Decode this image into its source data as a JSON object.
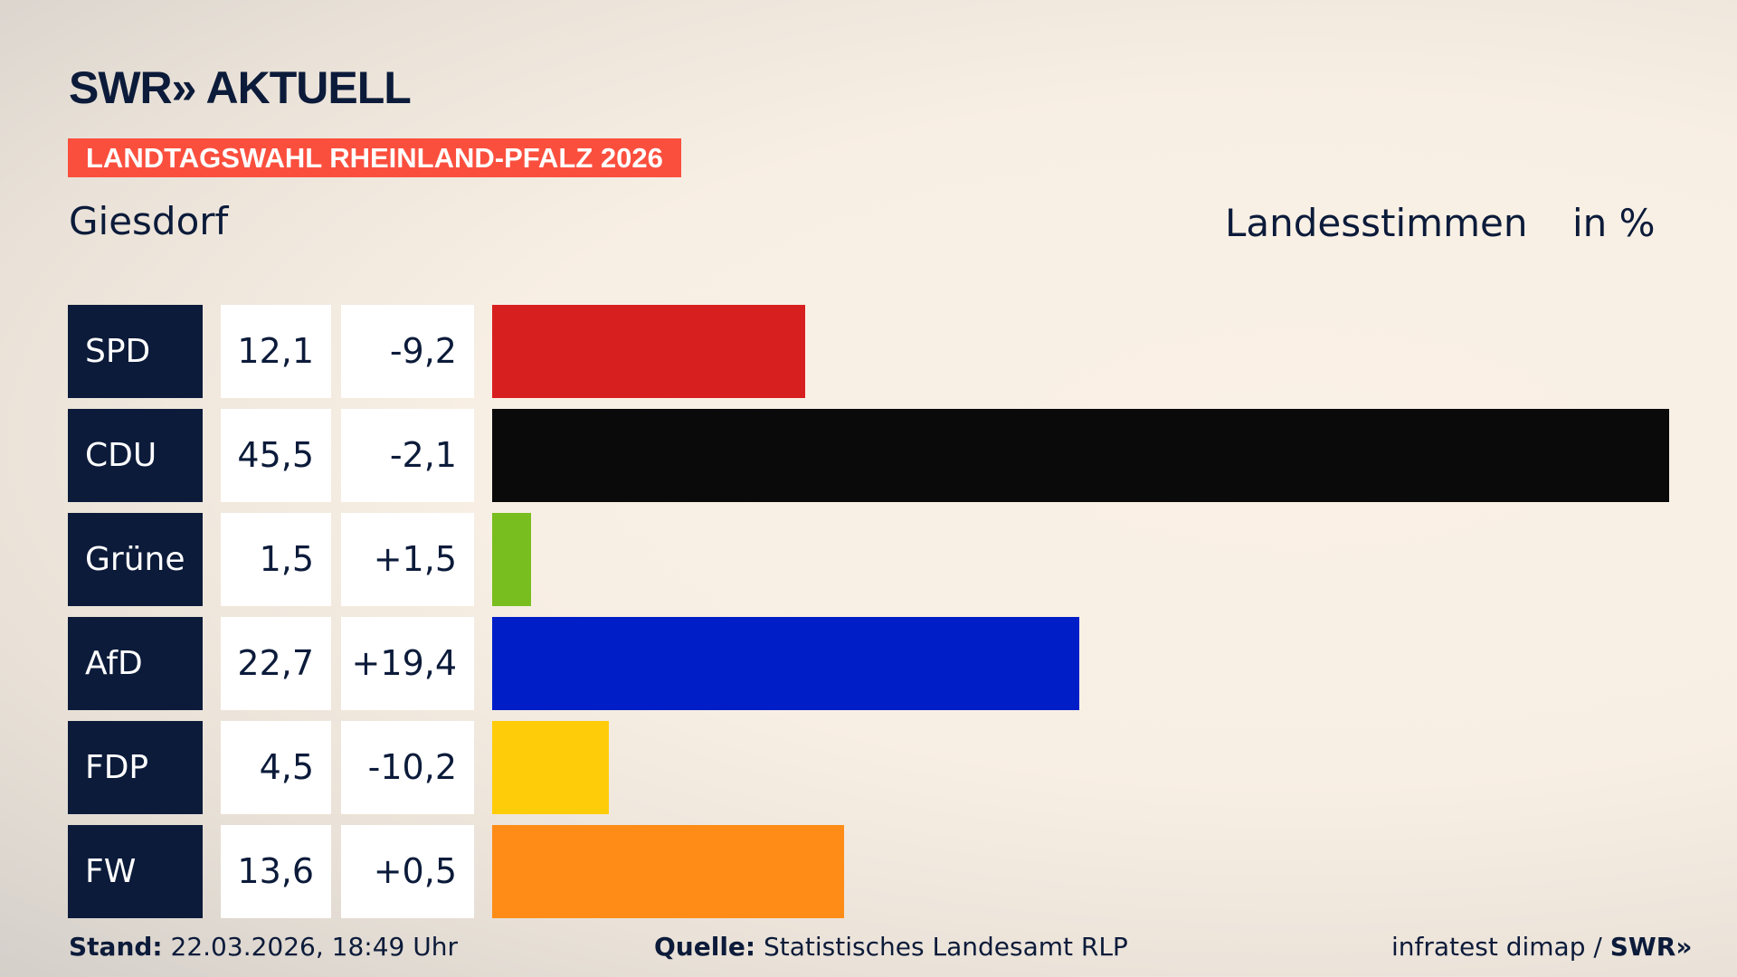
{
  "logo": "SWR» AKTUELL",
  "banner": "LANDTAGSWAHL RHEINLAND-PFALZ 2026",
  "location": "Giesdorf",
  "header": {
    "type": "Landesstimmen",
    "unit": "in %"
  },
  "chart_data": {
    "type": "bar",
    "orientation": "horizontal",
    "categories": [
      "SPD",
      "CDU",
      "Grüne",
      "AfD",
      "FDP",
      "FW"
    ],
    "values": [
      12.1,
      45.5,
      1.5,
      22.7,
      4.5,
      13.6
    ],
    "value_labels": [
      "12,1",
      "45,5",
      "1,5",
      "22,7",
      "4,5",
      "13,6"
    ],
    "diff_labels": [
      "-9,2",
      "-2,1",
      "+1,5",
      "+19,4",
      "-10,2",
      "+0,5"
    ],
    "diffs": [
      -9.2,
      -2.1,
      1.5,
      19.4,
      -10.2,
      0.5
    ],
    "colors": [
      "#d81f1f",
      "#0a0a0a",
      "#78be1e",
      "#001ec8",
      "#ffcc0a",
      "#ff8c17"
    ],
    "xlim": [
      0,
      45.5
    ]
  },
  "footer": {
    "stand_label": "Stand:",
    "stand": "22.03.2026, 18:49 Uhr",
    "quelle_label": "Quelle:",
    "quelle": "Statistisches Landesamt RLP",
    "credit": "infratest dimap / ",
    "credit_logo": "SWR»"
  }
}
